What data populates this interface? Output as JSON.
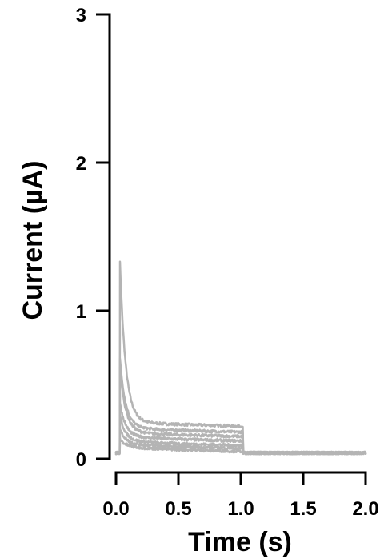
{
  "chart_data": {
    "type": "line",
    "title": "",
    "xlabel": "Time (s)",
    "ylabel": "Current (µA)",
    "xlim": [
      0,
      2.0
    ],
    "ylim": [
      0,
      3
    ],
    "x_ticks": [
      0.0,
      0.5,
      1.0,
      1.5,
      2.0
    ],
    "x_tick_labels": [
      "0.0",
      "0.5",
      "1.0",
      "1.5",
      "2.0"
    ],
    "y_ticks": [
      0,
      1,
      2,
      3
    ],
    "y_tick_labels": [
      "0",
      "1",
      "2",
      "3"
    ],
    "grid": false,
    "legend": "none",
    "trace_color": "#b4b4b4",
    "pulse": {
      "on": 0.03,
      "off": 1.02
    },
    "baseline": 0.04,
    "series": [
      {
        "peak": 1.36,
        "plateau": 0.24
      },
      {
        "peak": 0.68,
        "plateau": 0.2
      },
      {
        "peak": 0.62,
        "plateau": 0.17
      },
      {
        "peak": 0.37,
        "plateau": 0.14
      },
      {
        "peak": 0.28,
        "plateau": 0.11
      },
      {
        "peak": 0.19,
        "plateau": 0.09
      },
      {
        "peak": 0.12,
        "plateau": 0.07
      }
    ]
  }
}
